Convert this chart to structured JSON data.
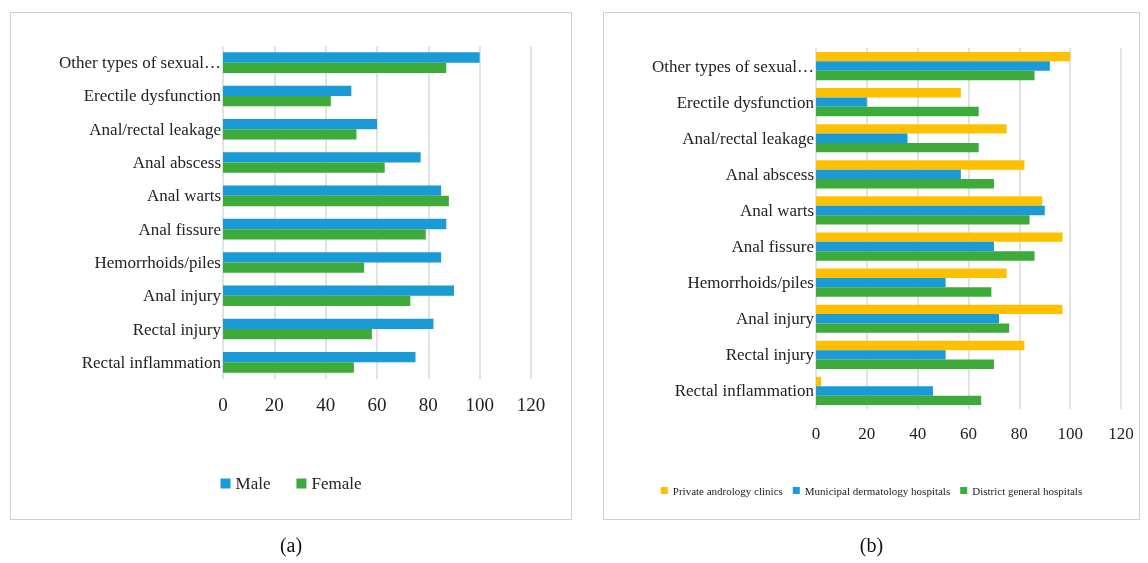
{
  "chart_data": [
    {
      "type": "bar",
      "orientation": "horizontal",
      "categories": [
        "Other types of sexual…",
        "Erectile dysfunction",
        "Anal/rectal leakage",
        "Anal abscess",
        "Anal warts",
        "Anal fissure",
        "Hemorrhoids/piles",
        "Anal injury",
        "Rectal injury",
        "Rectal inflammation"
      ],
      "series": [
        {
          "name": "Male",
          "color": "#1a9ad6",
          "values": [
            100,
            50,
            60,
            77,
            85,
            87,
            85,
            90,
            82,
            75
          ]
        },
        {
          "name": "Female",
          "color": "#3eaa3a",
          "values": [
            87,
            42,
            52,
            63,
            88,
            79,
            55,
            73,
            58,
            51
          ]
        }
      ],
      "xlim": [
        0,
        120
      ],
      "xticks": [
        0,
        20,
        40,
        60,
        80,
        100,
        120
      ],
      "grid": "x",
      "legend": "bottom",
      "annotations": [
        "(a)"
      ]
    },
    {
      "type": "bar",
      "orientation": "horizontal",
      "categories": [
        "Other types of sexual…",
        "Erectile dysfunction",
        "Anal/rectal leakage",
        "Anal abscess",
        "Anal warts",
        "Anal fissure",
        "Hemorrhoids/piles",
        "Anal injury",
        "Rectal injury",
        "Rectal inflammation"
      ],
      "series": [
        {
          "name": "Private andrology clinics",
          "color": "#ffc000",
          "values": [
            100,
            57,
            75,
            82,
            89,
            97,
            75,
            97,
            82,
            2
          ]
        },
        {
          "name": "Municipal dermatology hospitals",
          "color": "#1a9ad6",
          "values": [
            92,
            20,
            36,
            57,
            90,
            70,
            51,
            72,
            51,
            46
          ]
        },
        {
          "name": "District general hospitals",
          "color": "#3eaa3a",
          "values": [
            86,
            64,
            64,
            70,
            84,
            86,
            69,
            76,
            70,
            65
          ]
        }
      ],
      "xlim": [
        0,
        120
      ],
      "xticks": [
        0,
        20,
        40,
        60,
        80,
        100,
        120
      ],
      "grid": "x",
      "legend": "bottom",
      "annotations": [
        "(b)"
      ]
    }
  ]
}
